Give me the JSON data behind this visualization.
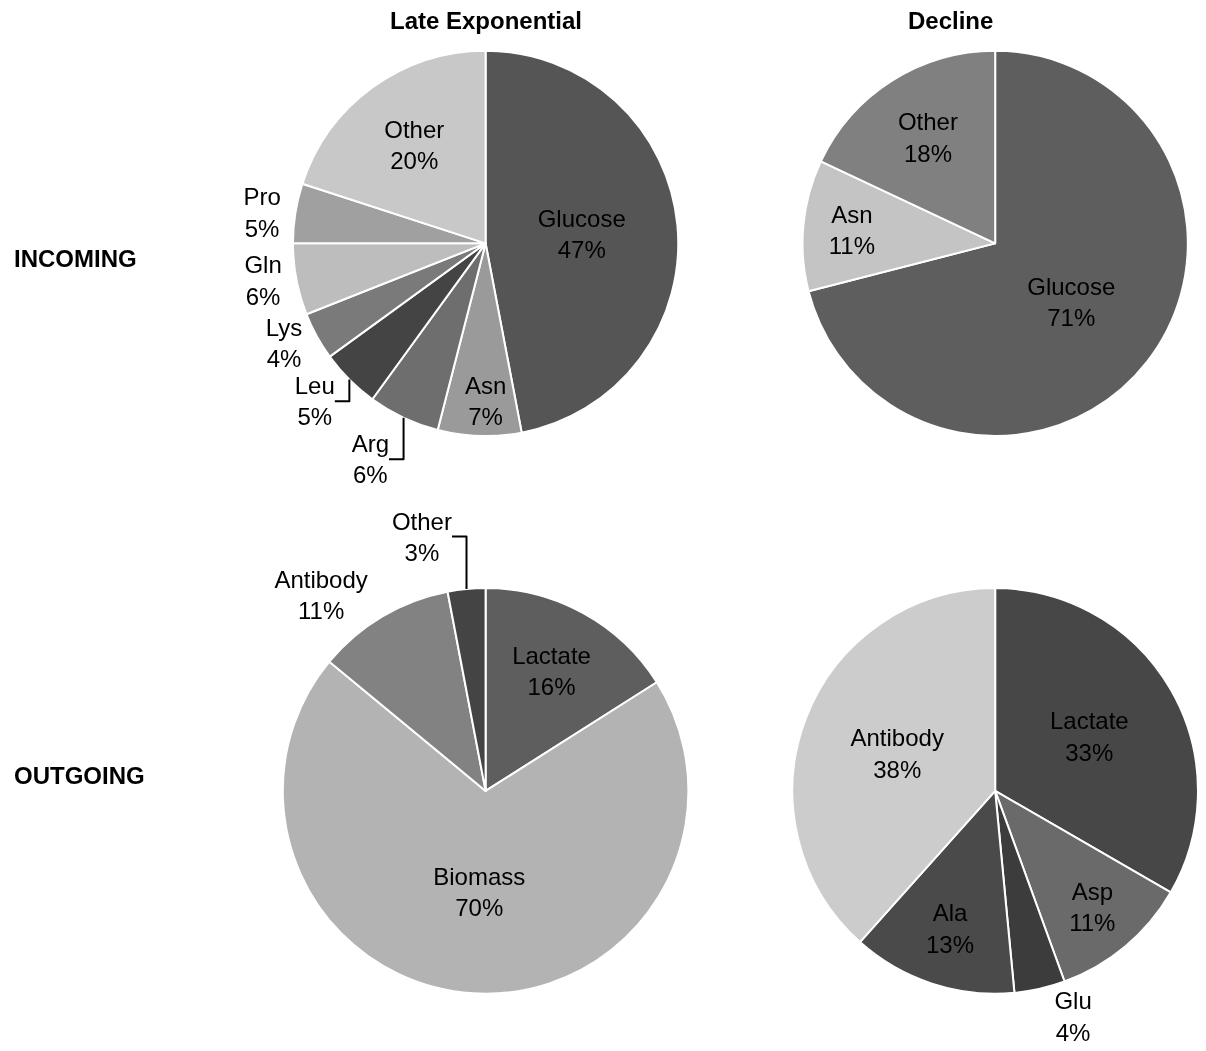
{
  "chart_data": [
    {
      "type": "pie",
      "title": "Late Exponential",
      "annotations": [
        "INCOMING"
      ],
      "categories": [
        "Glucose",
        "Asn",
        "Arg",
        "Leu",
        "Lys",
        "Gln",
        "Pro",
        "Other"
      ],
      "values": [
        47,
        7,
        6,
        5,
        4,
        6,
        5,
        20
      ],
      "value_labels": [
        "47%",
        "7%",
        "6%",
        "5%",
        "4%",
        "6%",
        "5%",
        "20%"
      ],
      "colors": [
        "#555555",
        "#9a9a9a",
        "#6e6e6e",
        "#444444",
        "#7a7a7a",
        "#bdbdbd",
        "#a0a0a0",
        "#c8c8c8"
      ]
    },
    {
      "type": "pie",
      "title": "Decline",
      "categories": [
        "Glucose",
        "Asn",
        "Other"
      ],
      "values": [
        71,
        11,
        18
      ],
      "value_labels": [
        "71%",
        "11%",
        "18%"
      ],
      "colors": [
        "#5e5e5e",
        "#c4c4c4",
        "#808080"
      ]
    },
    {
      "type": "pie",
      "annotations": [
        "OUTGOING"
      ],
      "categories": [
        "Lactate",
        "Biomass",
        "Antibody",
        "Other"
      ],
      "values": [
        16,
        70,
        11,
        3
      ],
      "value_labels": [
        "16%",
        "70%",
        "11%",
        "3%"
      ],
      "colors": [
        "#5e5e5e",
        "#b3b3b3",
        "#828282",
        "#444444"
      ]
    },
    {
      "type": "pie",
      "categories": [
        "Lactate",
        "Asp",
        "Glu",
        "Ala",
        "Antibody"
      ],
      "values": [
        33,
        11,
        4,
        13,
        38
      ],
      "value_labels": [
        "33%",
        "11%",
        "4%",
        "13%",
        "38%"
      ],
      "colors": [
        "#474747",
        "#6a6a6a",
        "#3c3c3c",
        "#4a4a4a",
        "#cccccc"
      ]
    }
  ]
}
